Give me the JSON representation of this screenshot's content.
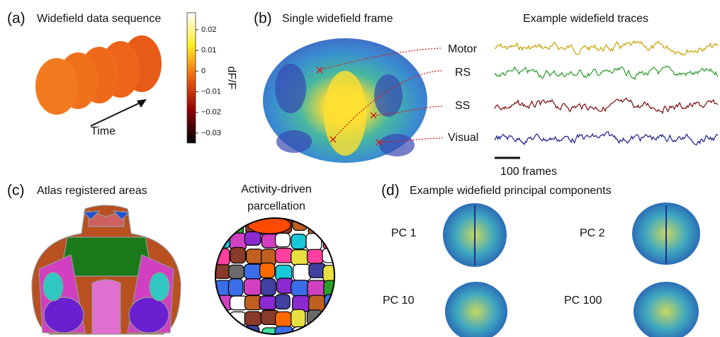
{
  "panels": [
    {
      "label": "(a)",
      "title": "Widefield data sequence",
      "axis_label": "Time",
      "colorbar": {
        "label": "dF/F",
        "ticks": [
          "0.02",
          "0.01",
          "0",
          "−0.01",
          "−0.02",
          "−0.03"
        ]
      }
    },
    {
      "label": "(b)",
      "title": "Single widefield frame",
      "traces_title": "Example widefield traces",
      "regions": [
        "Motor",
        "RS",
        "SS",
        "Visual"
      ],
      "scale_bar": "100 frames"
    },
    {
      "label": "(c)",
      "title": "Atlas registered areas",
      "subtitle": [
        "Activity-driven",
        "parcellation"
      ]
    },
    {
      "label": "(d)",
      "title": "Example widefield principal components",
      "components": [
        "PC 1",
        "PC 2",
        "PC 10",
        "PC 100"
      ]
    }
  ]
}
